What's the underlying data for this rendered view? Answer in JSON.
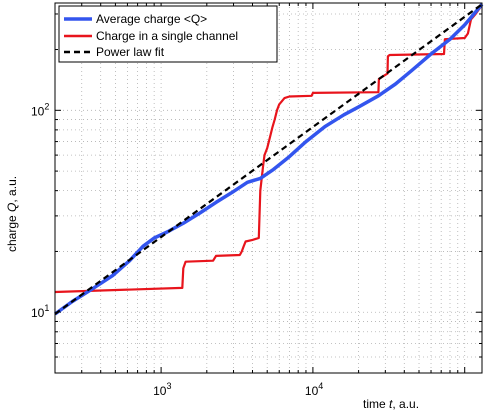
{
  "chart_data": {
    "type": "line",
    "xscale": "log",
    "yscale": "log",
    "xlim": [
      200,
      130000
    ],
    "ylim": [
      5,
      340
    ],
    "grid": true,
    "legend_position": "top-left",
    "xlabel_prefix": "time",
    "xlabel_var": "t",
    "xlabel_unit": ", a.u.",
    "ylabel_prefix": "charge",
    "ylabel_var": "Q",
    "ylabel_unit": ", a.u.",
    "x_major_ticks": [
      {
        "value": 1000,
        "base": "10",
        "exp": "3"
      },
      {
        "value": 10000,
        "base": "10",
        "exp": "4"
      }
    ],
    "y_major_ticks": [
      {
        "value": 10,
        "base": "10",
        "exp": "1"
      },
      {
        "value": 100,
        "base": "10",
        "exp": "2"
      }
    ],
    "series": [
      {
        "name": "Average charge  <Q>",
        "color": "#3355ee",
        "style": "solid",
        "points": [
          [
            200,
            9.8
          ],
          [
            260,
            11.3
          ],
          [
            350,
            13.0
          ],
          [
            480,
            15.2
          ],
          [
            620,
            18.0
          ],
          [
            760,
            21.2
          ],
          [
            900,
            23.3
          ],
          [
            1100,
            25.0
          ],
          [
            1400,
            27.6
          ],
          [
            1800,
            31.0
          ],
          [
            2300,
            35.0
          ],
          [
            2900,
            39.0
          ],
          [
            3700,
            44.0
          ],
          [
            4500,
            46.0
          ],
          [
            5500,
            51.0
          ],
          [
            7000,
            59.0
          ],
          [
            9000,
            70.0
          ],
          [
            12000,
            83.0
          ],
          [
            16000,
            95.0
          ],
          [
            20000,
            104.0
          ],
          [
            27000,
            118.0
          ],
          [
            35000,
            135.0
          ],
          [
            45000,
            158.0
          ],
          [
            60000,
            190.0
          ],
          [
            80000,
            225.0
          ],
          [
            100000,
            265.0
          ],
          [
            115000,
            300.0
          ],
          [
            130000,
            335.0
          ]
        ]
      },
      {
        "name": "Charge in a single channel",
        "color": "#e8141c",
        "style": "solid",
        "points": [
          [
            200,
            12.6
          ],
          [
            1380,
            13.2
          ],
          [
            1400,
            16.5
          ],
          [
            1450,
            17.8
          ],
          [
            2200,
            18.0
          ],
          [
            2300,
            19.0
          ],
          [
            3300,
            19.2
          ],
          [
            3400,
            20.0
          ],
          [
            3500,
            21.2
          ],
          [
            3600,
            22.4
          ],
          [
            4000,
            22.8
          ],
          [
            4400,
            23.3
          ],
          [
            4500,
            40.0
          ],
          [
            4700,
            53.0
          ],
          [
            4800,
            60.0
          ],
          [
            5000,
            65.0
          ],
          [
            5200,
            73.0
          ],
          [
            5400,
            82.0
          ],
          [
            5600,
            90.0
          ],
          [
            5800,
            100.0
          ],
          [
            6000,
            107.0
          ],
          [
            6500,
            115.0
          ],
          [
            7000,
            117.0
          ],
          [
            9800,
            118.0
          ],
          [
            10000,
            122.0
          ],
          [
            27000,
            123.0
          ],
          [
            27200,
            143.0
          ],
          [
            28000,
            145.0
          ],
          [
            31000,
            152.0
          ],
          [
            31200,
            185.0
          ],
          [
            32000,
            188.0
          ],
          [
            73000,
            190.0
          ],
          [
            74000,
            225.0
          ],
          [
            100000,
            228.0
          ],
          [
            105000,
            240.0
          ],
          [
            108000,
            265.0
          ],
          [
            110000,
            282.0
          ],
          [
            118000,
            300.0
          ],
          [
            130000,
            332.0
          ]
        ]
      },
      {
        "name": "Power law fit",
        "color": "#000000",
        "style": "dashed",
        "points": [
          [
            200,
            9.8
          ],
          [
            130000,
            335.0
          ]
        ]
      }
    ]
  }
}
